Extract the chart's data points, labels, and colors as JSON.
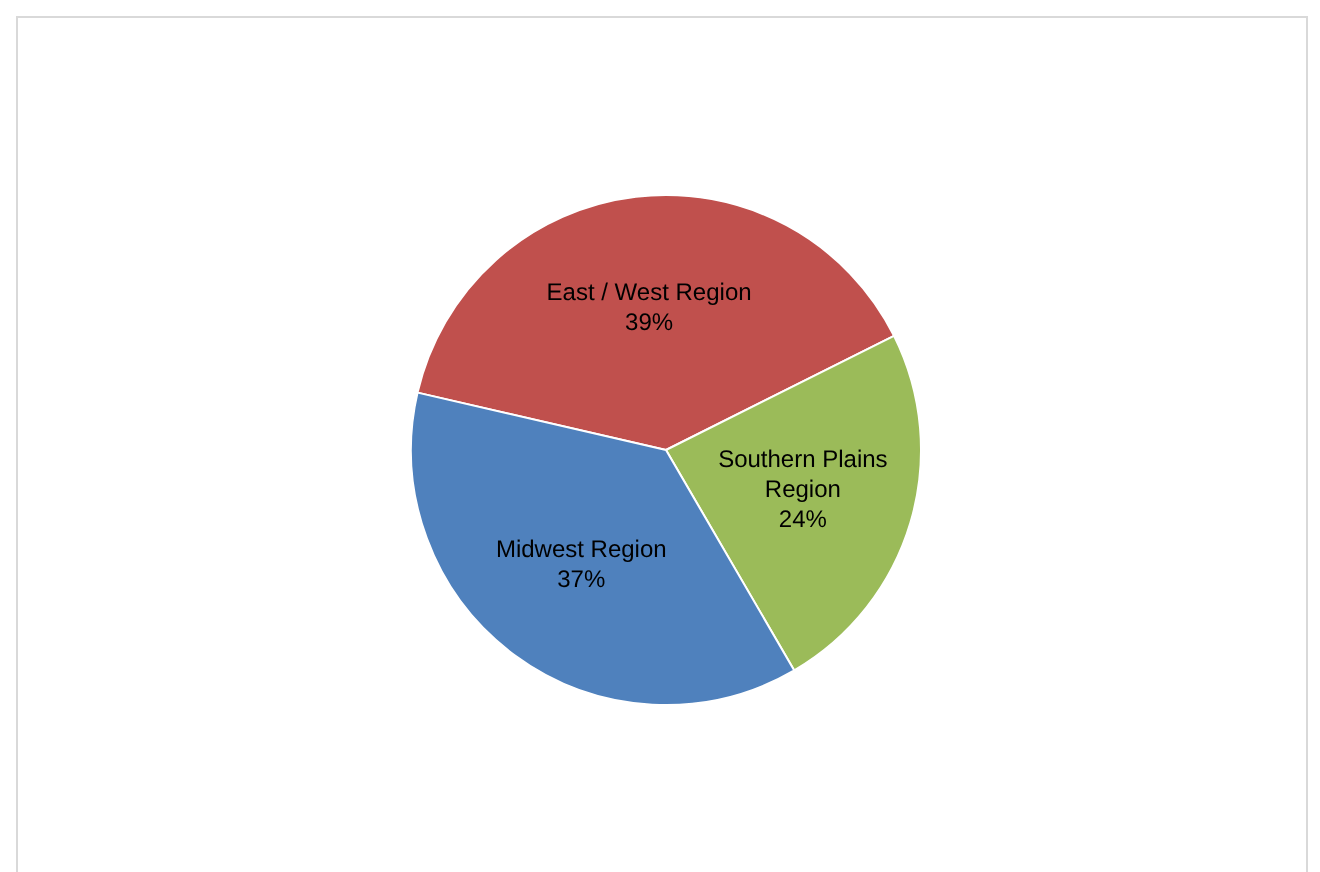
{
  "chart_data": {
    "type": "pie",
    "categories": [
      "East / West Region",
      "Southern Plains Region",
      "Midwest Region"
    ],
    "values": [
      39,
      24,
      37
    ],
    "colors": [
      "#c0504d",
      "#9bbb59",
      "#4f81bd"
    ],
    "value_labels": [
      "39%",
      "24%",
      "37%"
    ],
    "legend": false
  }
}
